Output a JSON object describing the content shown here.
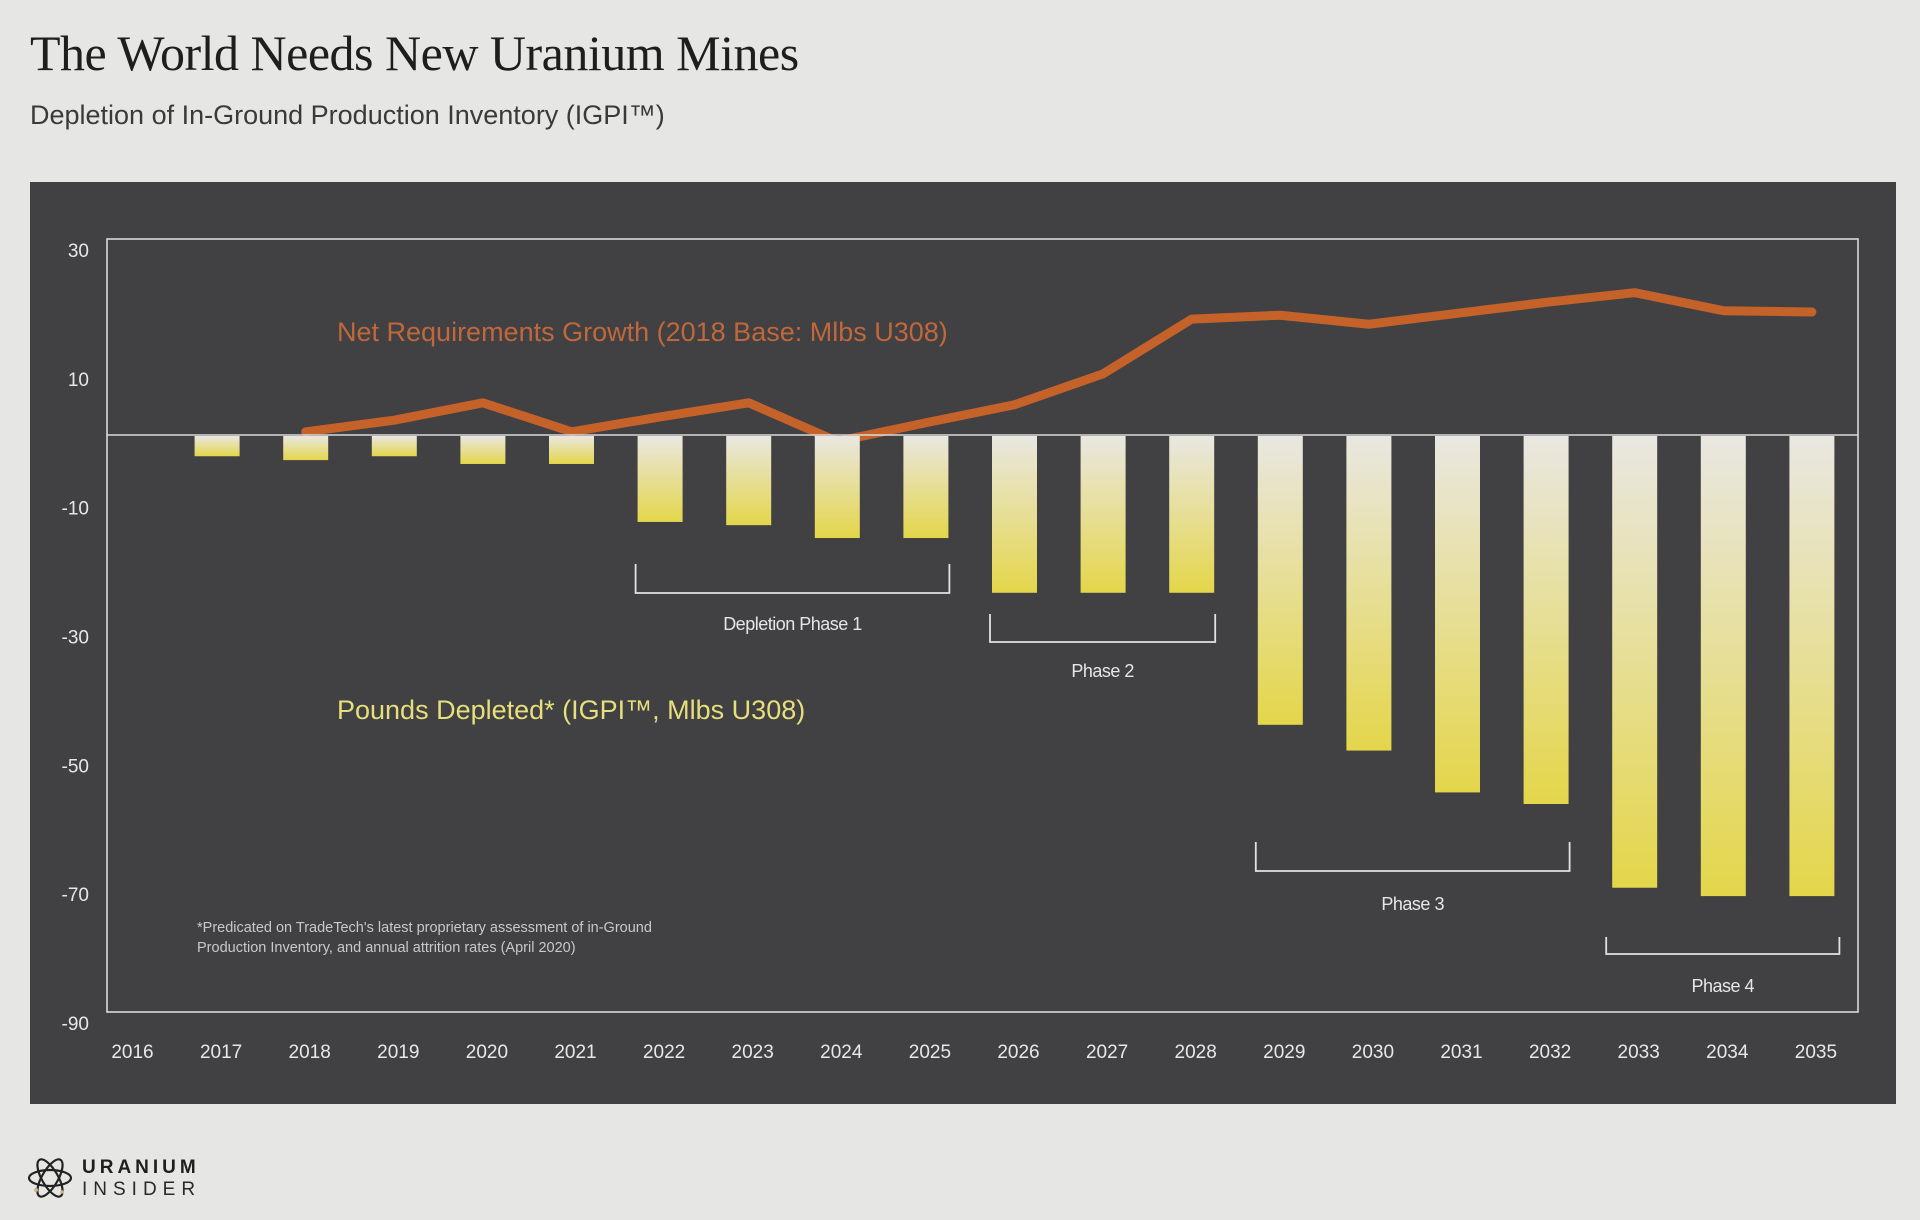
{
  "header": {
    "title": "The World Needs New Uranium Mines",
    "subtitle": "Depletion of In-Ground Production Inventory (IGPI™)"
  },
  "brand": {
    "icon": "atom-icon",
    "line1": "URANIUM",
    "line2": "INSIDER"
  },
  "colors": {
    "page_background": "#e6e6e4",
    "panel_background": "#414042",
    "frame": "#d9d9d9",
    "axis_text": "#e8e8e8",
    "line_series": "#c4622a",
    "line_label": "#c0683c",
    "bar_top": "#e9e7e1",
    "bar_bottom": "#e4d64a",
    "bar_label": "#e6df7c"
  },
  "chart_data": {
    "type": "bar",
    "title": "The World Needs New Uranium Mines",
    "subtitle": "Depletion of In-Ground Production Inventory (IGPI™)",
    "xlabel": "",
    "ylabel": "",
    "ylim": [
      -90,
      30
    ],
    "yticks": [
      30,
      10,
      -10,
      -30,
      -50,
      -70,
      -90
    ],
    "grid": false,
    "zero_line": true,
    "categories": [
      "2016",
      "2017",
      "2018",
      "2019",
      "2020",
      "2021",
      "2022",
      "2023",
      "2024",
      "2025",
      "2026",
      "2027",
      "2028",
      "2029",
      "2030",
      "2031",
      "2032",
      "2033",
      "2034",
      "2035"
    ],
    "series": [
      {
        "name": "Pounds Depleted* (IGPI™, Mlbs U308)",
        "type": "bar",
        "values": [
          null,
          -3.3,
          -3.9,
          -3.3,
          -4.5,
          -4.5,
          -13.5,
          -14,
          -16,
          -16,
          -24.5,
          -24.5,
          -24.5,
          -45,
          -49,
          -55.5,
          -57.3,
          -70.3,
          -71.6,
          -71.6
        ]
      },
      {
        "name": "Net Requirements Growth (2018 Base: Mlbs U308)",
        "type": "line",
        "values": [
          null,
          null,
          0.5,
          2.3,
          5.0,
          0.5,
          2.8,
          5.0,
          -1.0,
          1.9,
          4.7,
          9.5,
          18.0,
          18.6,
          17.2,
          18.9,
          20.6,
          22.1,
          19.3,
          19.1
        ]
      }
    ],
    "annotations": [
      {
        "label": "Net Requirements Growth (2018 Base: Mlbs U308)",
        "kind": "series-label",
        "series": 1
      },
      {
        "label": "Pounds Depleted* (IGPI™, Mlbs U308)",
        "kind": "series-label",
        "series": 0
      },
      {
        "label": "Depletion Phase 1",
        "kind": "bracket",
        "from": "2022",
        "to": "2025"
      },
      {
        "label": "Phase 2",
        "kind": "bracket",
        "from": "2026",
        "to": "2028"
      },
      {
        "label": "Phase 3",
        "kind": "bracket",
        "from": "2029",
        "to": "2032"
      },
      {
        "label": "Phase 4",
        "kind": "bracket",
        "from": "2033",
        "to": "2035"
      }
    ],
    "footnote": [
      "*Predicated on TradeTech's latest proprietary assessment of in-Ground",
      "Production Inventory, and annual attrition rates (April 2020)"
    ],
    "legend": "inline-labels"
  }
}
